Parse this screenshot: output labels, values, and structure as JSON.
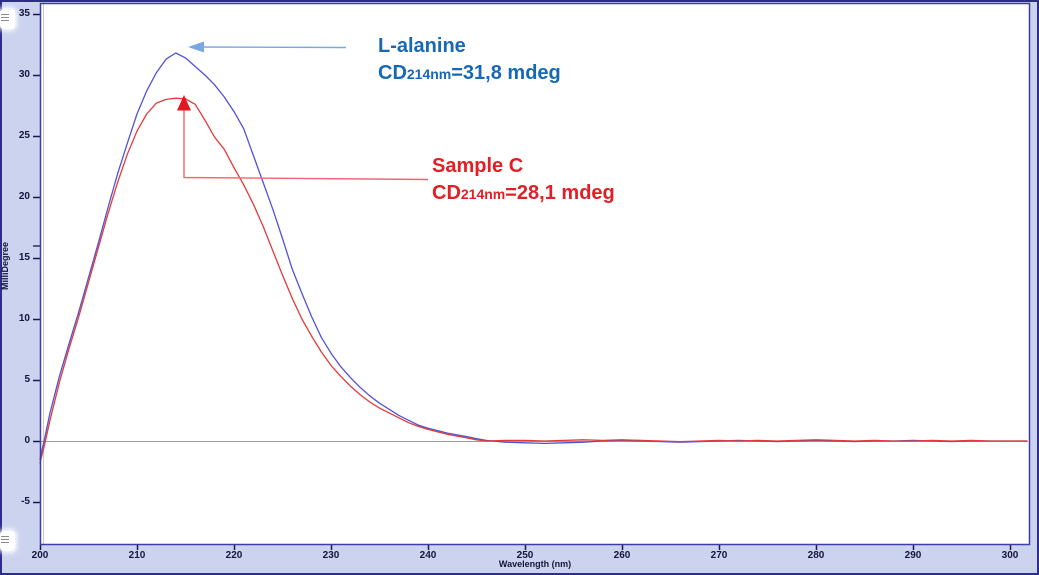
{
  "chart_data": {
    "type": "line",
    "title": "",
    "xlabel": "Wavelength (nm)",
    "ylabel": "MilliDegree",
    "xlim": [
      200,
      300
    ],
    "ylim": [
      -8.6,
      35.9
    ],
    "grid": false,
    "zero_line": true,
    "legend_position": "none",
    "x_ticks": [
      200,
      210,
      220,
      230,
      240,
      250,
      260,
      270,
      280,
      290,
      300
    ],
    "y_ticks": [
      35,
      30,
      25,
      20,
      15,
      10,
      5,
      0,
      -5
    ],
    "series": [
      {
        "name": "L-alanine",
        "color": "#5252d6",
        "peak_nm": 214,
        "peak_mdeg": 31.8,
        "x": [
          200,
          200.5,
          201,
          202,
          203,
          204,
          205,
          206,
          207,
          208,
          209,
          210,
          211,
          212,
          213,
          214,
          215,
          216,
          217,
          218,
          219,
          220,
          221,
          222,
          223,
          224,
          225,
          226,
          227,
          228,
          229,
          230,
          231,
          232,
          233,
          234,
          235,
          236,
          237,
          238,
          239,
          240,
          241,
          242,
          243,
          244,
          245,
          246,
          248,
          250,
          252,
          254,
          256,
          258,
          260,
          262,
          264,
          266,
          268,
          270,
          272,
          274,
          276,
          278,
          280,
          282,
          284,
          286,
          288,
          290,
          292,
          294,
          296,
          298,
          300
        ],
        "y": [
          -1.5,
          0.3,
          2.2,
          5.3,
          8.0,
          10.6,
          13.4,
          16.2,
          19.1,
          21.9,
          24.4,
          26.8,
          28.7,
          30.2,
          31.3,
          31.8,
          31.4,
          30.7,
          30.0,
          29.2,
          28.2,
          27.0,
          25.6,
          23.4,
          21.2,
          19.0,
          16.6,
          14.1,
          12.1,
          10.2,
          8.5,
          7.2,
          6.1,
          5.2,
          4.4,
          3.7,
          3.1,
          2.6,
          2.1,
          1.7,
          1.3,
          1.05,
          0.85,
          0.65,
          0.5,
          0.35,
          0.2,
          0.05,
          -0.1,
          -0.15,
          -0.2,
          -0.15,
          -0.1,
          0.0,
          0.05,
          0.0,
          -0.05,
          -0.1,
          -0.05,
          0.0,
          0.05,
          0.0,
          -0.05,
          0.0,
          0.05,
          0.0,
          -0.05,
          0.0,
          0.0,
          0.05,
          0.0,
          -0.05,
          0.0,
          0.0,
          0.0
        ]
      },
      {
        "name": "Sample C",
        "color": "#e13b3b",
        "peak_nm": 214,
        "peak_mdeg": 28.1,
        "x": [
          200,
          200.5,
          201,
          202,
          203,
          204,
          205,
          206,
          207,
          208,
          209,
          210,
          211,
          212,
          213,
          214,
          215,
          216,
          217,
          218,
          219,
          220,
          221,
          222,
          223,
          224,
          225,
          226,
          227,
          228,
          229,
          230,
          231,
          232,
          233,
          234,
          235,
          236,
          237,
          238,
          239,
          240,
          241,
          242,
          243,
          244,
          245,
          246,
          248,
          250,
          252,
          254,
          256,
          258,
          260,
          262,
          264,
          266,
          268,
          270,
          272,
          274,
          276,
          278,
          280,
          282,
          284,
          286,
          288,
          290,
          292,
          294,
          296,
          298,
          300
        ],
        "y": [
          -1.8,
          -0.2,
          1.6,
          4.8,
          7.6,
          10.2,
          13.0,
          15.8,
          18.6,
          21.2,
          23.5,
          25.4,
          26.8,
          27.7,
          28.0,
          28.1,
          28.05,
          27.6,
          26.3,
          24.9,
          23.9,
          22.4,
          21.0,
          19.4,
          17.6,
          15.6,
          13.6,
          11.7,
          10.0,
          8.6,
          7.3,
          6.2,
          5.3,
          4.5,
          3.8,
          3.2,
          2.7,
          2.3,
          1.9,
          1.5,
          1.2,
          0.95,
          0.75,
          0.55,
          0.4,
          0.25,
          0.1,
          0.0,
          0.05,
          0.05,
          0.0,
          0.05,
          0.1,
          0.05,
          0.1,
          0.05,
          0.0,
          -0.05,
          0.0,
          0.05,
          0.0,
          0.05,
          0.0,
          0.05,
          0.1,
          0.05,
          0.0,
          0.05,
          0.0,
          0.0,
          0.05,
          0.0,
          0.05,
          0.0,
          0.0
        ]
      }
    ],
    "annotations": [
      {
        "target_series": "L-alanine",
        "text_line1": "L-alanine",
        "cd_prefix": "CD",
        "cd_sub": "214nm",
        "cd_rest": "=31,8 mdeg",
        "peak_nm": 214,
        "peak_mdeg": 31.8,
        "text_color": "#1769b5",
        "arrow_color": "#7aa7e0"
      },
      {
        "target_series": "Sample C",
        "text_line1": "Sample C",
        "cd_prefix": "CD",
        "cd_sub": "214nm",
        "cd_rest": "=28,1 mdeg",
        "peak_nm": 214,
        "peak_mdeg": 28.1,
        "text_color": "#e02025",
        "arrow_color": "#f26672"
      }
    ],
    "colors": {
      "chrome_background": "#ccd3ee",
      "plot_background": "#ffffff",
      "plot_border": "#3c3caa",
      "outer_frame": "#2d2d8f",
      "zero_line": "#9a9a9a",
      "tick_color": "#1a1a50",
      "cursor_line": "#cfc9b6",
      "red_arrowhead": "#e0181f"
    }
  }
}
